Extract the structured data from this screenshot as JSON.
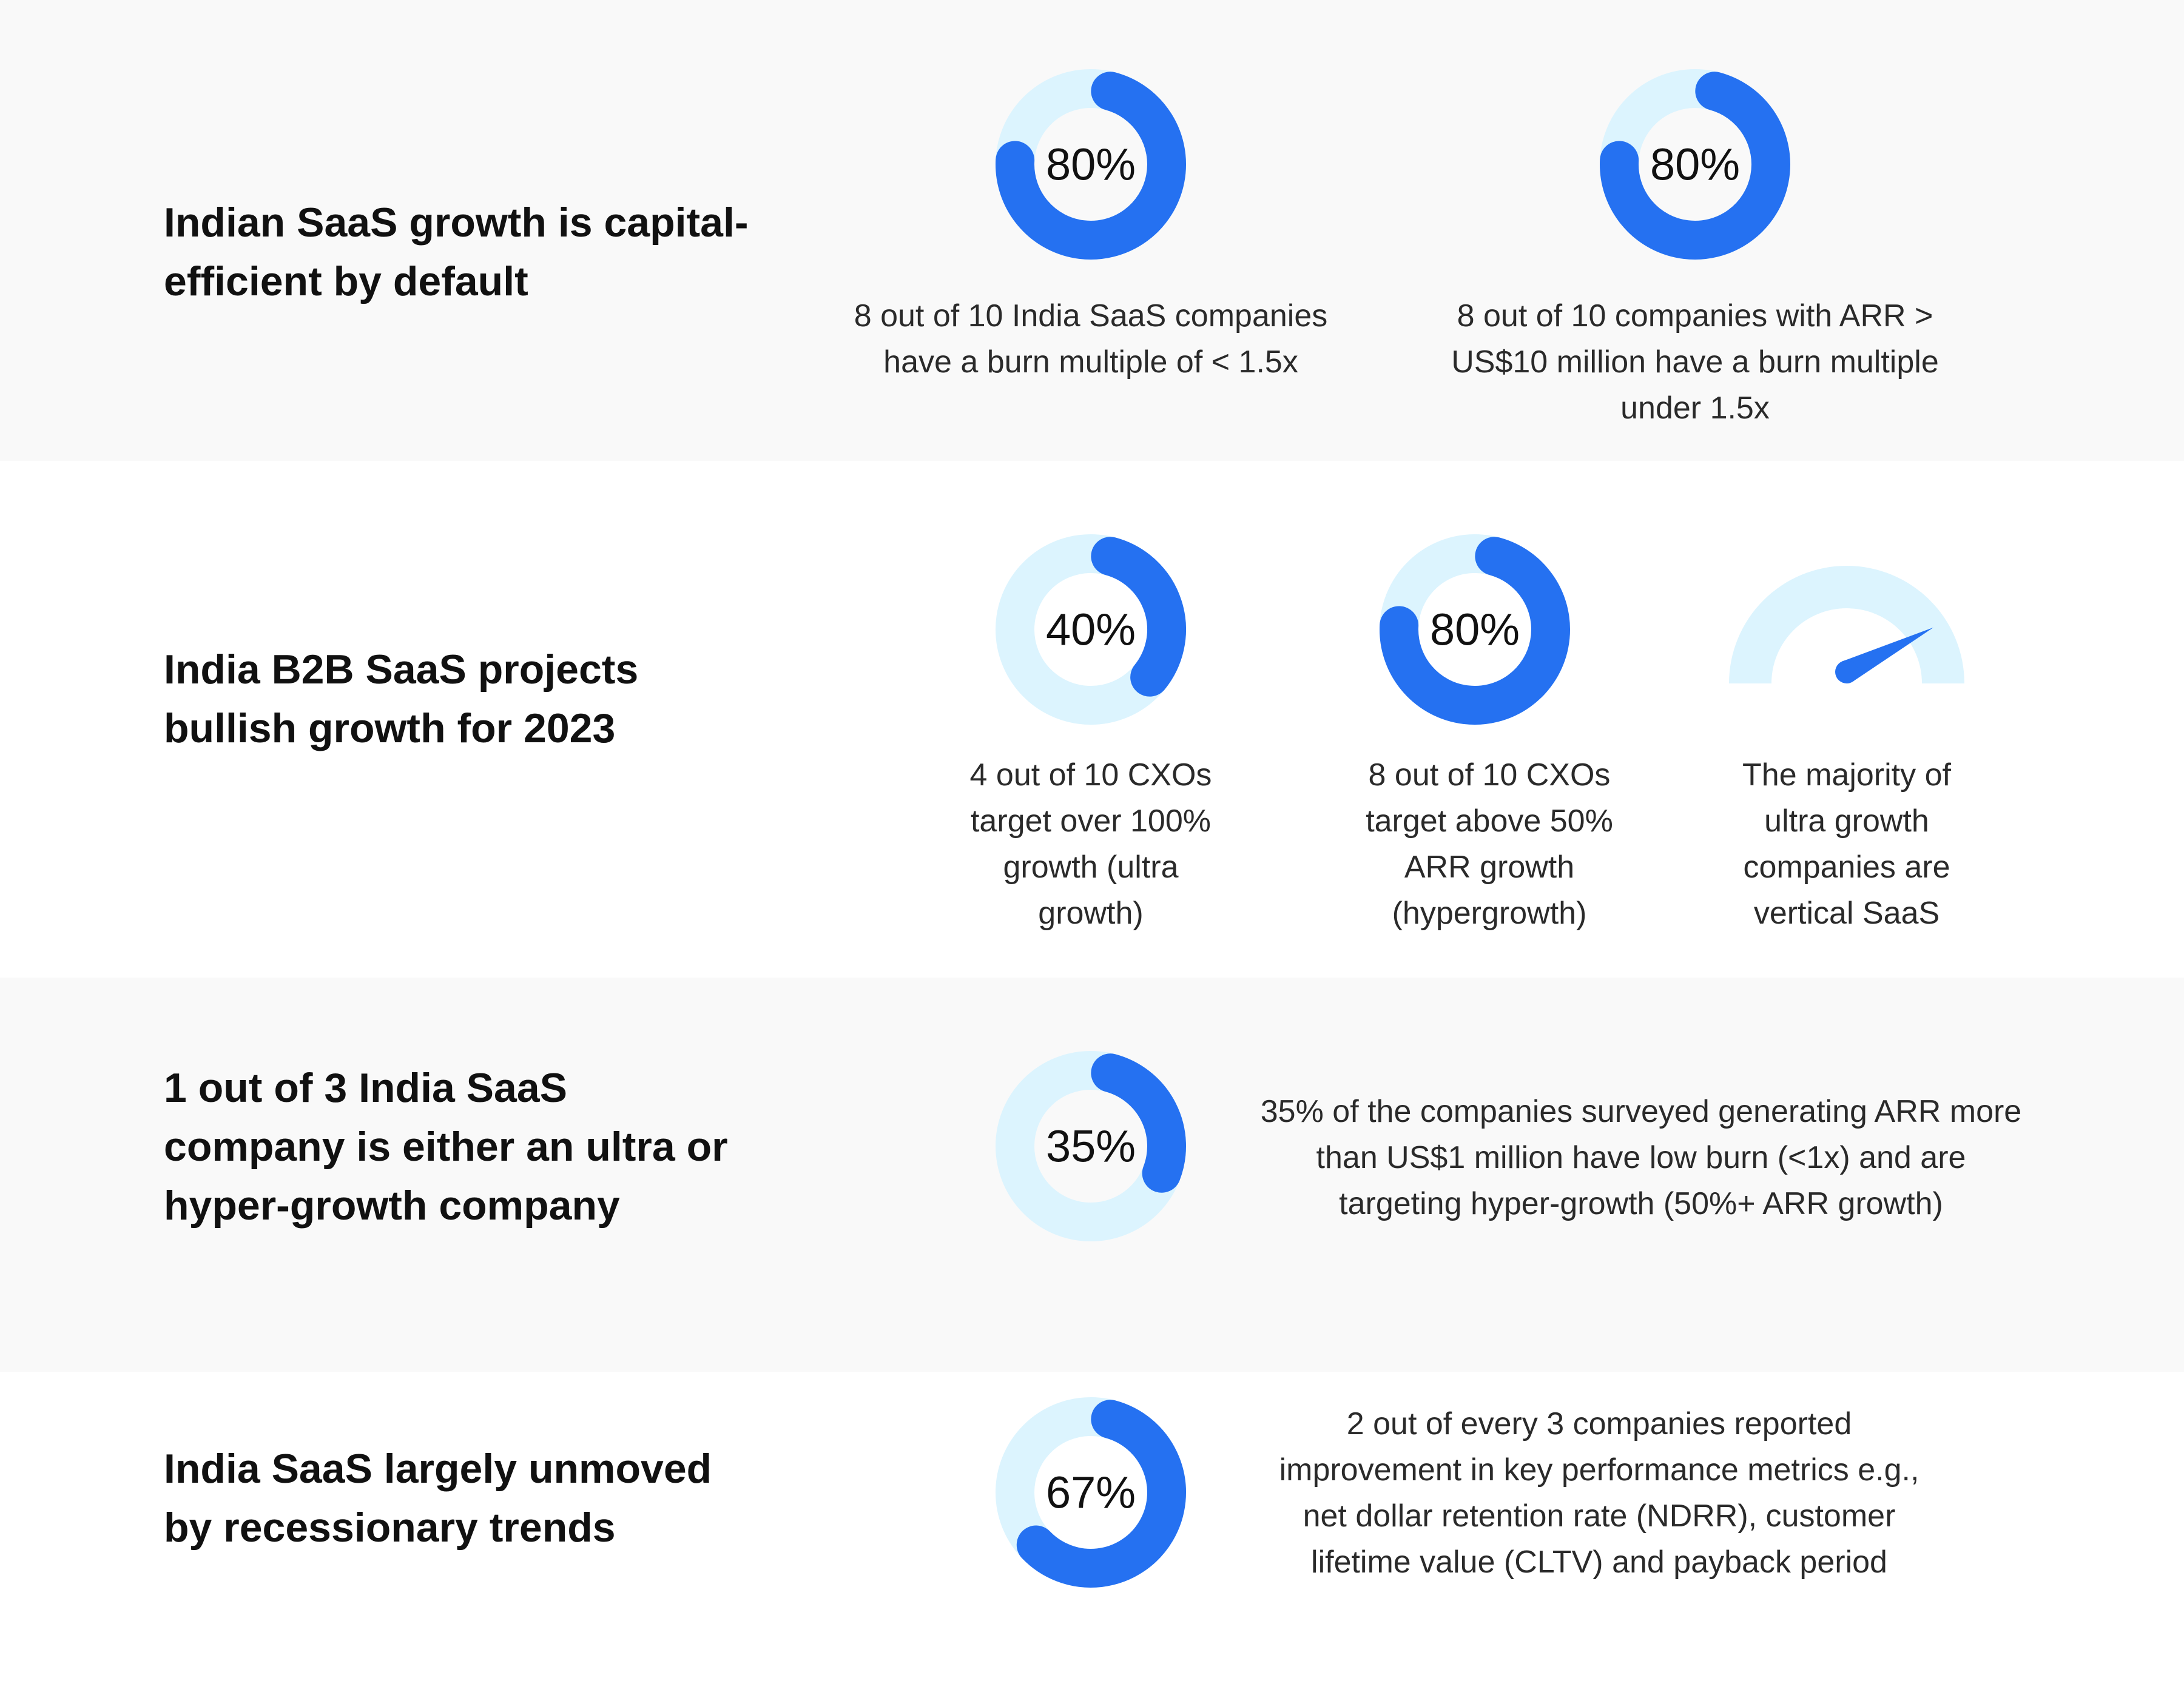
{
  "colors": {
    "accent": "#2571f1",
    "track": "#dcf4fe",
    "section_bg": "#f9f9f9"
  },
  "chart_data": [
    {
      "type": "donut",
      "section": 0,
      "value": 80,
      "label": "80%",
      "description": [
        "8 out of 10 India SaaS companies",
        "have a burn multiple of < 1.5x"
      ]
    },
    {
      "type": "donut",
      "section": 0,
      "value": 80,
      "label": "80%",
      "description": [
        "8 out of 10 companies with ARR >",
        "US$10 million have a burn multiple",
        "under 1.5x"
      ]
    },
    {
      "type": "donut",
      "section": 1,
      "value": 40,
      "label": "40%",
      "description": [
        "4 out of 10 CXOs",
        "target over 100%",
        "growth (ultra",
        "growth)"
      ]
    },
    {
      "type": "donut",
      "section": 1,
      "value": 80,
      "label": "80%",
      "description": [
        "8 out of 10 CXOs",
        "target above 50%",
        "ARR growth",
        "(hypergrowth)"
      ]
    },
    {
      "type": "gauge",
      "section": 1,
      "value": 0.86,
      "description": [
        "The majority of",
        "ultra growth",
        "companies are",
        "vertical SaaS"
      ]
    },
    {
      "type": "donut",
      "section": 2,
      "value": 35,
      "label": "35%",
      "description": [
        "35% of the companies surveyed generating ARR more",
        "than US$1 million have low burn (<1x) and are",
        "targeting hyper-growth (50%+ ARR growth)"
      ]
    },
    {
      "type": "donut",
      "section": 3,
      "value": 67,
      "label": "67%",
      "description": [
        "2 out of every 3 companies reported",
        "improvement in key performance metrics e.g.,",
        "net dollar retention rate (NDRR), customer",
        "lifetime value (CLTV) and payback period"
      ]
    }
  ],
  "sections": [
    {
      "heading": [
        "Indian SaaS growth is capital-",
        "efficient by default"
      ]
    },
    {
      "heading": [
        "India B2B SaaS projects",
        "bullish growth for 2023"
      ]
    },
    {
      "heading": [
        "1 out of 3 India SaaS",
        "company is either an ultra or",
        "hyper-growth company"
      ]
    },
    {
      "heading": [
        "India SaaS largely unmoved",
        "by recessionary trends"
      ]
    }
  ]
}
